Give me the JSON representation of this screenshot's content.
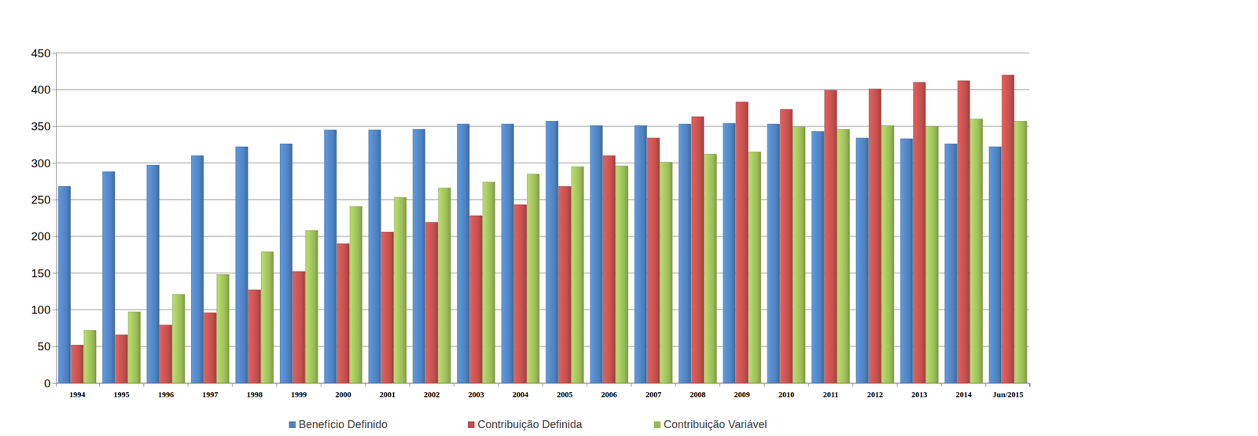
{
  "chart_data": {
    "type": "bar",
    "categories": [
      "1994",
      "1995",
      "1996",
      "1997",
      "1998",
      "1999",
      "2000",
      "2001",
      "2002",
      "2003",
      "2004",
      "2005",
      "2006",
      "2007",
      "2008",
      "2009",
      "2010",
      "2011",
      "2012",
      "2013",
      "2014",
      "Jun/2015"
    ],
    "series": [
      {
        "name": "Benefício Definido",
        "color": "#4f81bd",
        "values": [
          268,
          288,
          297,
          310,
          322,
          326,
          345,
          345,
          346,
          353,
          353,
          357,
          351,
          351,
          353,
          354,
          353,
          343,
          334,
          333,
          326,
          322
        ]
      },
      {
        "name": "Contribuição Definida",
        "color": "#c0504d",
        "values": [
          52,
          66,
          79,
          96,
          127,
          152,
          190,
          206,
          219,
          228,
          243,
          268,
          310,
          334,
          363,
          383,
          373,
          399,
          401,
          410,
          412,
          420
        ]
      },
      {
        "name": "Contribuição Variável",
        "color": "#9bbb59",
        "values": [
          72,
          97,
          121,
          148,
          179,
          208,
          241,
          253,
          266,
          274,
          285,
          295,
          296,
          301,
          312,
          315,
          349,
          346,
          351,
          350,
          360,
          357
        ]
      }
    ],
    "ylim": [
      0,
      450
    ],
    "yticks": [
      0,
      50,
      100,
      150,
      200,
      250,
      300,
      350,
      400,
      450
    ],
    "grid": true,
    "legend": "bottom"
  }
}
